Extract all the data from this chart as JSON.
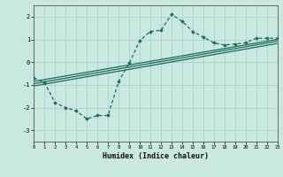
{
  "xlabel": "Humidex (Indice chaleur)",
  "bg_color": "#c8e8e0",
  "grid_color": "#a8ccc4",
  "line_color": "#1a6b5a",
  "xlim": [
    0,
    23
  ],
  "ylim": [
    -3.5,
    2.5
  ],
  "yticks": [
    -3,
    -2,
    -1,
    0,
    1,
    2
  ],
  "xticks": [
    0,
    1,
    2,
    3,
    4,
    5,
    6,
    7,
    8,
    9,
    10,
    11,
    12,
    13,
    14,
    15,
    16,
    17,
    18,
    19,
    20,
    21,
    22,
    23
  ],
  "main_x": [
    0,
    1,
    2,
    3,
    4,
    5,
    6,
    7,
    8,
    9,
    10,
    11,
    12,
    13,
    14,
    15,
    16,
    17,
    18,
    19,
    20,
    21,
    22,
    23
  ],
  "main_y": [
    -0.7,
    -0.9,
    -1.8,
    -2.0,
    -2.15,
    -2.5,
    -2.35,
    -2.35,
    -0.85,
    -0.05,
    0.95,
    1.35,
    1.4,
    2.1,
    1.8,
    1.35,
    1.1,
    0.85,
    0.75,
    0.8,
    0.85,
    1.05,
    1.05,
    1.05
  ],
  "reg_lines": [
    {
      "x": [
        0,
        23
      ],
      "y": [
        -0.85,
        1.0
      ]
    },
    {
      "x": [
        0,
        23
      ],
      "y": [
        -0.95,
        0.92
      ]
    },
    {
      "x": [
        0,
        23
      ],
      "y": [
        -1.05,
        0.82
      ]
    }
  ]
}
